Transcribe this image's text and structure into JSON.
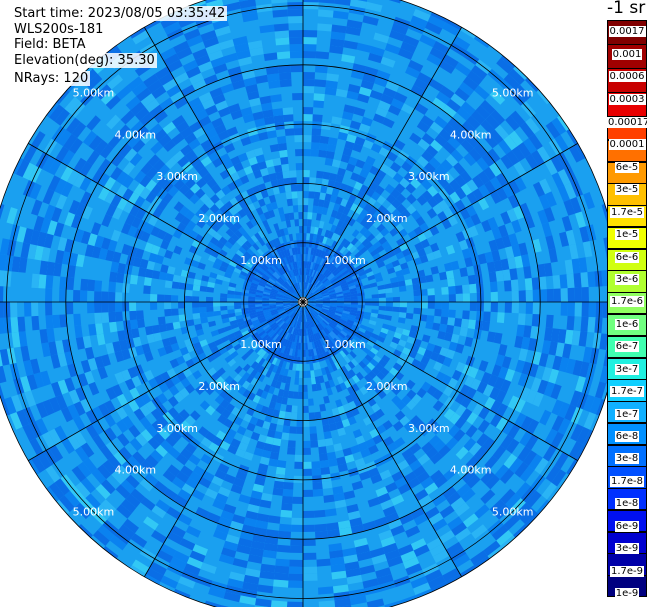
{
  "header": {
    "start_time": "Start time: 2023/08/05 03:35:42",
    "instrument": "WLS200s-181",
    "field": "Field: BETA",
    "elevation": "Elevation(deg): 35.30",
    "nrays": "NRays: 120"
  },
  "chart_data": {
    "type": "heatmap",
    "projection": "polar (PPI)",
    "title": "",
    "range_rings_km": [
      1,
      2,
      3,
      4,
      5
    ],
    "ring_labels": [
      "1.00km",
      "2.00km",
      "3.00km",
      "4.00km",
      "5.00km"
    ],
    "radial_spokes_deg": [
      0,
      30,
      60,
      90,
      120,
      150,
      180,
      210,
      240,
      270,
      300,
      330
    ],
    "max_range_km": 5.35,
    "grid": true,
    "n_rays": 120,
    "dominant_value": "1.7e-8 to 1e-7",
    "colorbar": {
      "unit_label": "-1 sr",
      "labels_top_to_bottom": [
        "0.0017",
        "0.001",
        "0.0006",
        "0.0003",
        "0.00017",
        "0.0001",
        "6e-5",
        "3e-5",
        "1.7e-5",
        "1e-5",
        "6e-6",
        "3e-6",
        "1.7e-6",
        "1e-6",
        "6e-7",
        "3e-7",
        "1.7e-7",
        "1e-7",
        "6e-8",
        "3e-8",
        "1.7e-8",
        "1e-8",
        "6e-9",
        "3e-9",
        "1.7e-9",
        "1e-9"
      ],
      "upper_colors": [
        "#800000",
        "#a00000",
        "#c80000",
        "#e80000"
      ],
      "lower_colors": [
        "#ff4000",
        "#ff7000",
        "#ff9a00",
        "#ffc000",
        "#ffe000",
        "#f0ff00",
        "#d0ff10",
        "#b0ff30",
        "#90ff60",
        "#70ff80",
        "#40ffb0",
        "#20f0e0",
        "#10d0ff",
        "#10b0ff",
        "#0090ff",
        "#0070ff",
        "#0050ff",
        "#0030ff",
        "#0010f0",
        "#0000d0",
        "#0000a8",
        "#000080"
      ]
    }
  }
}
